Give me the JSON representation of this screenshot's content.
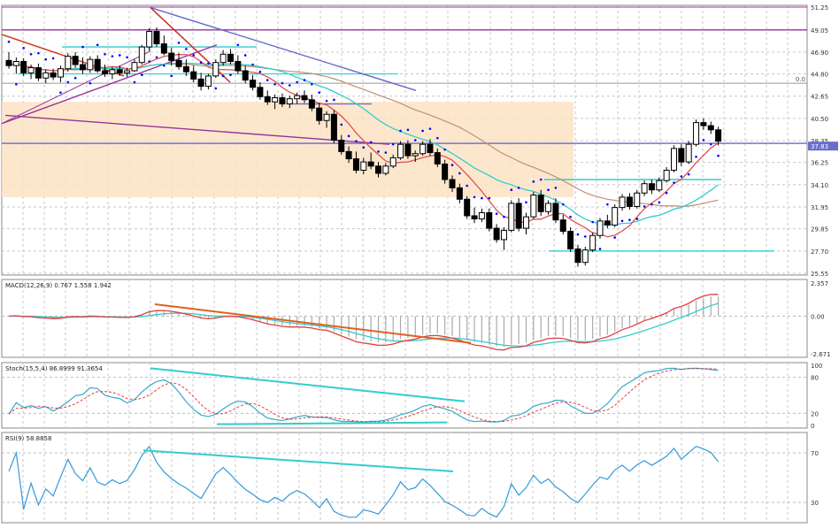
{
  "chart_data": [
    {
      "type": "candlestick",
      "panel": "price",
      "y_range": [
        25.55,
        51.25
      ],
      "y_ticks": [
        "51.25",
        "49.05",
        "46.90",
        "44.80",
        "42.65",
        "40.50",
        "38.35",
        "36.25",
        "34.10",
        "31.95",
        "29.85",
        "27.70",
        "25.55"
      ],
      "current_price_label": "37.83",
      "level_label": "0.0",
      "candles": [
        {
          "o": 46.1,
          "h": 46.9,
          "l": 45.3,
          "c": 45.6
        },
        {
          "o": 45.6,
          "h": 46.4,
          "l": 44.8,
          "c": 46.0
        },
        {
          "o": 46.0,
          "h": 46.3,
          "l": 44.6,
          "c": 44.9
        },
        {
          "o": 44.9,
          "h": 45.7,
          "l": 44.3,
          "c": 45.4
        },
        {
          "o": 45.4,
          "h": 45.8,
          "l": 44.1,
          "c": 44.4
        },
        {
          "o": 44.4,
          "h": 45.2,
          "l": 43.9,
          "c": 44.9
        },
        {
          "o": 44.9,
          "h": 45.3,
          "l": 44.2,
          "c": 44.5
        },
        {
          "o": 44.5,
          "h": 45.6,
          "l": 44.0,
          "c": 45.3
        },
        {
          "o": 45.3,
          "h": 46.8,
          "l": 45.0,
          "c": 46.5
        },
        {
          "o": 46.5,
          "h": 46.9,
          "l": 45.4,
          "c": 45.7
        },
        {
          "o": 45.7,
          "h": 46.4,
          "l": 44.8,
          "c": 45.2
        },
        {
          "o": 45.2,
          "h": 46.5,
          "l": 44.9,
          "c": 46.2
        },
        {
          "o": 46.2,
          "h": 46.6,
          "l": 44.9,
          "c": 45.1
        },
        {
          "o": 45.1,
          "h": 45.7,
          "l": 44.5,
          "c": 44.8
        },
        {
          "o": 44.8,
          "h": 45.5,
          "l": 44.3,
          "c": 45.2
        },
        {
          "o": 45.2,
          "h": 45.6,
          "l": 44.6,
          "c": 44.9
        },
        {
          "o": 44.9,
          "h": 45.4,
          "l": 44.5,
          "c": 45.1
        },
        {
          "o": 45.1,
          "h": 46.2,
          "l": 45.0,
          "c": 45.9
        },
        {
          "o": 45.9,
          "h": 47.6,
          "l": 45.7,
          "c": 47.4
        },
        {
          "o": 47.4,
          "h": 49.2,
          "l": 47.0,
          "c": 48.9
        },
        {
          "o": 48.9,
          "h": 49.3,
          "l": 47.4,
          "c": 47.7
        },
        {
          "o": 47.7,
          "h": 48.5,
          "l": 46.6,
          "c": 46.8
        },
        {
          "o": 46.8,
          "h": 47.3,
          "l": 45.6,
          "c": 46.1
        },
        {
          "o": 46.1,
          "h": 46.8,
          "l": 45.2,
          "c": 45.5
        },
        {
          "o": 45.5,
          "h": 46.2,
          "l": 44.6,
          "c": 45.0
        },
        {
          "o": 45.0,
          "h": 45.6,
          "l": 44.0,
          "c": 44.3
        },
        {
          "o": 44.3,
          "h": 44.9,
          "l": 43.2,
          "c": 43.6
        },
        {
          "o": 43.6,
          "h": 44.8,
          "l": 43.3,
          "c": 44.6
        },
        {
          "o": 44.6,
          "h": 46.2,
          "l": 44.4,
          "c": 45.9
        },
        {
          "o": 45.9,
          "h": 47.1,
          "l": 45.6,
          "c": 46.7
        },
        {
          "o": 46.7,
          "h": 47.2,
          "l": 45.7,
          "c": 46.0
        },
        {
          "o": 46.0,
          "h": 46.6,
          "l": 44.8,
          "c": 45.1
        },
        {
          "o": 45.1,
          "h": 45.6,
          "l": 43.9,
          "c": 44.2
        },
        {
          "o": 44.2,
          "h": 44.7,
          "l": 43.2,
          "c": 43.5
        },
        {
          "o": 43.5,
          "h": 44.0,
          "l": 42.3,
          "c": 42.6
        },
        {
          "o": 42.6,
          "h": 43.2,
          "l": 41.8,
          "c": 42.1
        },
        {
          "o": 42.1,
          "h": 42.8,
          "l": 41.4,
          "c": 42.5
        },
        {
          "o": 42.5,
          "h": 42.9,
          "l": 41.6,
          "c": 41.9
        },
        {
          "o": 41.9,
          "h": 42.7,
          "l": 41.5,
          "c": 42.4
        },
        {
          "o": 42.4,
          "h": 43.0,
          "l": 41.9,
          "c": 42.7
        },
        {
          "o": 42.7,
          "h": 43.2,
          "l": 42.0,
          "c": 42.3
        },
        {
          "o": 42.3,
          "h": 42.8,
          "l": 41.2,
          "c": 41.5
        },
        {
          "o": 41.5,
          "h": 42.0,
          "l": 39.9,
          "c": 40.3
        },
        {
          "o": 40.3,
          "h": 41.2,
          "l": 39.6,
          "c": 40.9
        },
        {
          "o": 40.9,
          "h": 41.3,
          "l": 38.1,
          "c": 38.4
        },
        {
          "o": 38.4,
          "h": 38.9,
          "l": 37.0,
          "c": 37.3
        },
        {
          "o": 37.3,
          "h": 37.8,
          "l": 36.2,
          "c": 36.6
        },
        {
          "o": 36.6,
          "h": 37.3,
          "l": 35.2,
          "c": 35.5
        },
        {
          "o": 35.5,
          "h": 36.7,
          "l": 35.1,
          "c": 36.3
        },
        {
          "o": 36.3,
          "h": 37.2,
          "l": 35.6,
          "c": 35.9
        },
        {
          "o": 35.9,
          "h": 36.3,
          "l": 34.8,
          "c": 35.2
        },
        {
          "o": 35.2,
          "h": 36.2,
          "l": 35.0,
          "c": 35.9
        },
        {
          "o": 35.9,
          "h": 37.0,
          "l": 35.7,
          "c": 36.7
        },
        {
          "o": 36.7,
          "h": 38.3,
          "l": 36.5,
          "c": 38.0
        },
        {
          "o": 38.0,
          "h": 38.4,
          "l": 36.6,
          "c": 36.9
        },
        {
          "o": 36.9,
          "h": 37.4,
          "l": 36.3,
          "c": 37.1
        },
        {
          "o": 37.1,
          "h": 38.3,
          "l": 36.9,
          "c": 38.0
        },
        {
          "o": 38.0,
          "h": 38.5,
          "l": 36.9,
          "c": 37.2
        },
        {
          "o": 37.2,
          "h": 37.6,
          "l": 35.8,
          "c": 36.1
        },
        {
          "o": 36.1,
          "h": 36.5,
          "l": 34.2,
          "c": 34.6
        },
        {
          "o": 34.6,
          "h": 35.0,
          "l": 33.4,
          "c": 33.8
        },
        {
          "o": 33.8,
          "h": 34.2,
          "l": 32.3,
          "c": 32.7
        },
        {
          "o": 32.7,
          "h": 33.0,
          "l": 30.8,
          "c": 31.1
        },
        {
          "o": 31.1,
          "h": 31.9,
          "l": 30.4,
          "c": 30.8
        },
        {
          "o": 30.8,
          "h": 31.8,
          "l": 30.5,
          "c": 31.4
        },
        {
          "o": 31.4,
          "h": 31.8,
          "l": 29.6,
          "c": 29.9
        },
        {
          "o": 29.9,
          "h": 30.3,
          "l": 28.5,
          "c": 28.8
        },
        {
          "o": 28.8,
          "h": 30.0,
          "l": 27.8,
          "c": 29.7
        },
        {
          "o": 29.7,
          "h": 32.6,
          "l": 29.5,
          "c": 32.3
        },
        {
          "o": 32.3,
          "h": 32.8,
          "l": 29.6,
          "c": 29.9
        },
        {
          "o": 29.9,
          "h": 31.4,
          "l": 29.3,
          "c": 31.0
        },
        {
          "o": 31.0,
          "h": 33.4,
          "l": 30.8,
          "c": 33.1
        },
        {
          "o": 33.1,
          "h": 33.6,
          "l": 31.1,
          "c": 31.5
        },
        {
          "o": 31.5,
          "h": 32.6,
          "l": 31.2,
          "c": 32.3
        },
        {
          "o": 32.3,
          "h": 32.8,
          "l": 30.4,
          "c": 30.7
        },
        {
          "o": 30.7,
          "h": 31.2,
          "l": 29.3,
          "c": 29.6
        },
        {
          "o": 29.6,
          "h": 30.0,
          "l": 27.6,
          "c": 27.9
        },
        {
          "o": 27.9,
          "h": 28.3,
          "l": 26.2,
          "c": 26.6
        },
        {
          "o": 26.6,
          "h": 28.1,
          "l": 26.3,
          "c": 27.8
        },
        {
          "o": 27.8,
          "h": 29.5,
          "l": 27.6,
          "c": 29.2
        },
        {
          "o": 29.2,
          "h": 30.9,
          "l": 28.9,
          "c": 30.6
        },
        {
          "o": 30.6,
          "h": 31.2,
          "l": 29.9,
          "c": 30.2
        },
        {
          "o": 30.2,
          "h": 32.2,
          "l": 30.0,
          "c": 31.9
        },
        {
          "o": 31.9,
          "h": 33.2,
          "l": 31.6,
          "c": 32.9
        },
        {
          "o": 32.9,
          "h": 33.3,
          "l": 31.7,
          "c": 32.0
        },
        {
          "o": 32.0,
          "h": 33.6,
          "l": 31.8,
          "c": 33.3
        },
        {
          "o": 33.3,
          "h": 34.5,
          "l": 33.0,
          "c": 34.2
        },
        {
          "o": 34.2,
          "h": 34.6,
          "l": 33.2,
          "c": 33.6
        },
        {
          "o": 33.6,
          "h": 34.8,
          "l": 33.4,
          "c": 34.5
        },
        {
          "o": 34.5,
          "h": 35.8,
          "l": 34.3,
          "c": 35.5
        },
        {
          "o": 35.5,
          "h": 37.9,
          "l": 35.3,
          "c": 37.6
        },
        {
          "o": 37.6,
          "h": 38.0,
          "l": 35.9,
          "c": 36.3
        },
        {
          "o": 36.3,
          "h": 38.3,
          "l": 36.1,
          "c": 38.0
        },
        {
          "o": 38.0,
          "h": 40.4,
          "l": 37.8,
          "c": 40.1
        },
        {
          "o": 40.1,
          "h": 40.5,
          "l": 39.4,
          "c": 39.8
        },
        {
          "o": 39.8,
          "h": 40.2,
          "l": 39.0,
          "c": 39.4
        },
        {
          "o": 39.4,
          "h": 39.7,
          "l": 37.9,
          "c": 38.3
        }
      ],
      "overlays": {
        "ma_fast_color": "#e05050",
        "ma_slow_color": "#33cccc",
        "sar_color": "#0000ff",
        "trendline_colors": [
          "#993399",
          "#cc3333",
          "#6666cc",
          "#33cccc"
        ],
        "zone_color": "#fbe3c4"
      }
    },
    {
      "type": "line",
      "panel": "macd",
      "label": "MACD(12,26,9) 0.767 1.558 1.942",
      "y_range": [
        -2.671,
        2.357
      ],
      "y_ticks": [
        "2.357",
        "0.00",
        "-2.671"
      ],
      "series_colors": {
        "macd": "#e04040",
        "signal": "#33cccc",
        "histogram": "#aaaaaa"
      }
    },
    {
      "type": "line",
      "panel": "stochastic",
      "label": "Stoch(15,5,4) 86.8999 91.3654",
      "y_range": [
        0,
        100
      ],
      "y_ticks": [
        "100",
        "80",
        "20",
        "0"
      ],
      "series_colors": {
        "main": "#33aacc",
        "signal": "#e04040"
      }
    },
    {
      "type": "line",
      "panel": "rsi",
      "label": "RSI(9) 58.8858",
      "y_ticks": [
        "70",
        "30"
      ],
      "series_colors": {
        "rsi": "#3399dd",
        "trend": "#33cccc"
      }
    }
  ]
}
